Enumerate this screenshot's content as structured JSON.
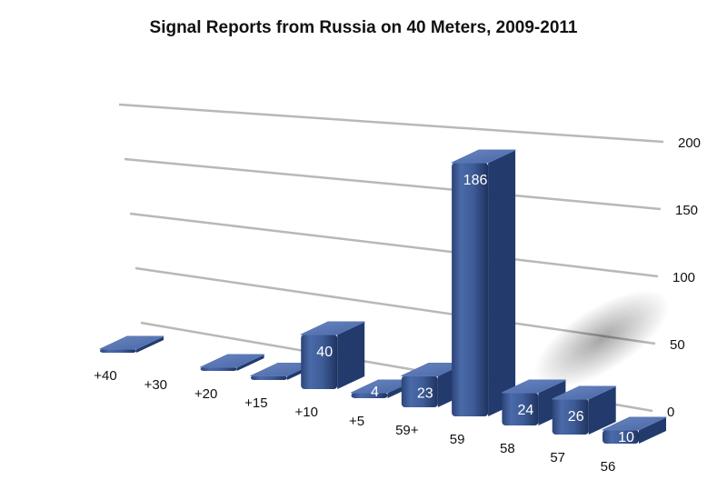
{
  "chart_data": {
    "type": "bar",
    "title": "Signal Reports from Russia on 40 Meters, 2009-2011",
    "xlabel": "",
    "ylabel": "",
    "ylim": [
      0,
      200
    ],
    "y_ticks": [
      "0",
      "50",
      "100",
      "150",
      "200"
    ],
    "categories": [
      "+40",
      "+30",
      "+20",
      "+15",
      "+10",
      "+5",
      "59+",
      "59",
      "58",
      "57",
      "56"
    ],
    "values": [
      1,
      0,
      2,
      3,
      40,
      4,
      23,
      186,
      24,
      26,
      10
    ],
    "data_labels": [
      "",
      "",
      "",
      "",
      "40",
      "4",
      "23",
      "186",
      "24",
      "26",
      "10"
    ],
    "bar_color": "#3f5d99",
    "grid": true,
    "legend": "none",
    "style": "3d-perspective"
  }
}
